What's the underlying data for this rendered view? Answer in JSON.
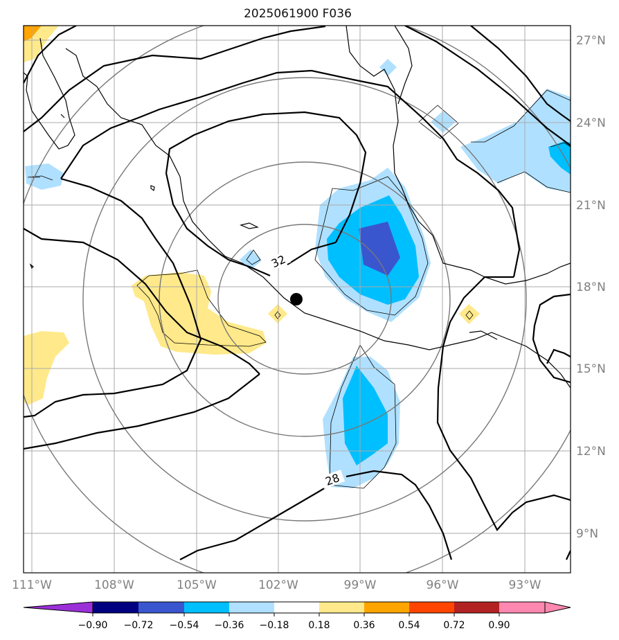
{
  "title": "2025061900 F036",
  "lat_labels": [
    "27°N",
    "24°N",
    "21°N",
    "18°N",
    "15°N",
    "12°N",
    "9°N"
  ],
  "lon_labels": [
    "111°W",
    "108°W",
    "105°W",
    "102°W",
    "99°W",
    "96°W",
    "93°W"
  ],
  "contour_labels": [
    "32",
    "28"
  ],
  "colorbar": {
    "tick_labels": [
      "−0.90",
      "−0.72",
      "−0.54",
      "−0.36",
      "−0.18",
      "0.18",
      "0.36",
      "0.54",
      "0.72",
      "0.90"
    ],
    "colors": [
      "#9b30d9",
      "#000080",
      "#3a56cf",
      "#00bfff",
      "#b0e0ff",
      "#ffffff",
      "#ffe98a",
      "#ffa500",
      "#ff4500",
      "#b22222",
      "#ff88b0"
    ]
  },
  "storm_center": {
    "lat": 17.6,
    "lon": -101.3
  },
  "shading_colors": {
    "light_blue": "#b0e0ff",
    "mid_blue": "#00bfff",
    "dark_blue": "#3a56cf",
    "light_yellow": "#ffe98a",
    "orange": "#ffa500"
  }
}
